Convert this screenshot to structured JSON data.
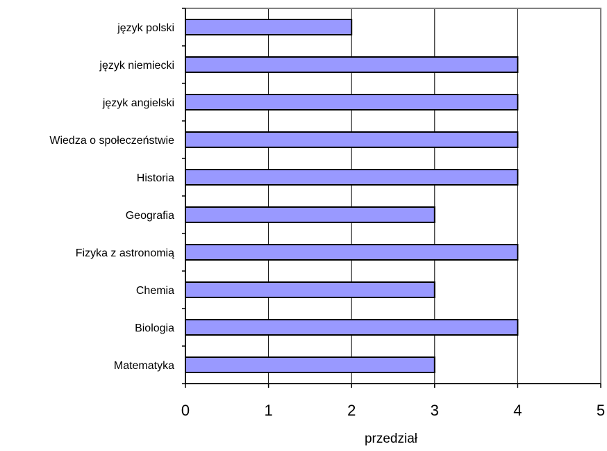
{
  "chart_data": {
    "type": "bar",
    "orientation": "horizontal",
    "categories": [
      "język polski",
      "język niemiecki",
      "język angielski",
      "Wiedza o społeczeństwie",
      "Historia",
      "Geografia",
      "Fizyka z astronomią",
      "Chemia",
      "Biologia",
      "Matematyka"
    ],
    "values": [
      2,
      4,
      4,
      4,
      4,
      3,
      4,
      3,
      4,
      3
    ],
    "xlabel": "przedział",
    "ylabel": "",
    "xlim": [
      0,
      5
    ],
    "x_ticks": [
      "0",
      "1",
      "2",
      "3",
      "4",
      "5"
    ],
    "grid": "vertical",
    "legend": "none",
    "colors": {
      "bar_fill": "#9999ff",
      "bar_stroke": "#000000",
      "grid": "#000000",
      "plot_border": "#808080"
    }
  }
}
